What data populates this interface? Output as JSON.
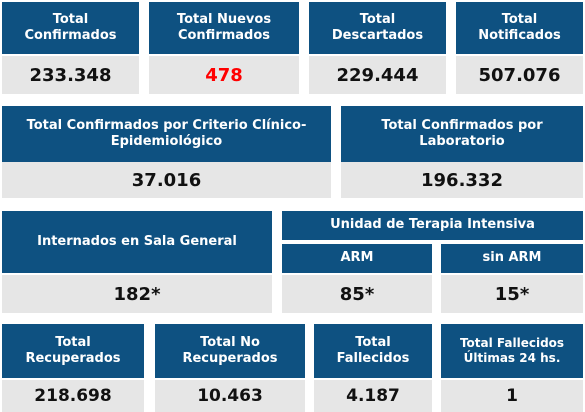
{
  "row1": [
    {
      "title": "Total\nConfirmados",
      "value": "233.348"
    },
    {
      "title": "Total Nuevos\nConfirmados",
      "value": "478"
    },
    {
      "title": "Total\nDescartados",
      "value": "229.444"
    },
    {
      "title": "Total\nNotificados",
      "value": "507.076"
    }
  ],
  "row2": [
    {
      "title": "Total Confirmados por Criterio Clínico-\nEpidemiológico",
      "value": "37.016"
    },
    {
      "title": "Total Confirmados por\nLaboratorio",
      "value": "196.332"
    }
  ],
  "row3": {
    "sala": {
      "title": "Internados en Sala General",
      "value": "182*"
    },
    "uti": {
      "title": "Unidad de Terapia Intensiva",
      "arm": {
        "title": "ARM",
        "value": "85*"
      },
      "sin_arm": {
        "title": "sin ARM",
        "value": "15*"
      }
    }
  },
  "row4": [
    {
      "title": "Total\nRecuperados",
      "value": "218.698"
    },
    {
      "title": "Total No\nRecuperados",
      "value": "10.463"
    },
    {
      "title": "Total\nFallecidos",
      "value": "4.187"
    },
    {
      "title": "Total Fallecidos\nÚltimas 24 hs.",
      "value": "1"
    }
  ],
  "colors": {
    "header": "#0e5181",
    "value_bg": "#e6e6e6",
    "highlight": "#ff0000"
  }
}
